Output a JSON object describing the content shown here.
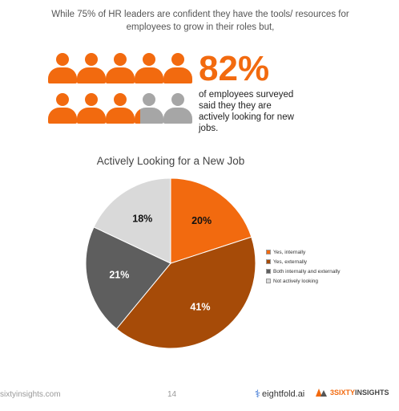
{
  "intro_text": "While 75% of HR leaders are confident they have the tools/ resources for employees to grow in their roles but,",
  "stat": {
    "number": "82%",
    "text": "of employees surveyed said they they are actively looking for new jobs."
  },
  "icon_colors": {
    "highlight": "#f26a0f",
    "muted": "#a6a6a6"
  },
  "icon_count": 10,
  "icon_highlight_fraction": 0.82,
  "chart_data": {
    "type": "pie",
    "title": "Actively Looking for a New Job",
    "slices": [
      {
        "label": "Yes, internally",
        "value": 20,
        "display": "20%",
        "color": "#f26a0f",
        "label_color": "#111111"
      },
      {
        "label": "Yes, externally",
        "value": 41,
        "display": "41%",
        "color": "#a64b08",
        "label_color": "#ffffff"
      },
      {
        "label": "Both internally and externally",
        "value": 21,
        "display": "21%",
        "color": "#5e5e5e",
        "label_color": "#ffffff"
      },
      {
        "label": "Not actively looking",
        "value": 18,
        "display": "18%",
        "color": "#d9d9d9",
        "label_color": "#111111"
      }
    ],
    "legend_position": "right"
  },
  "footer": {
    "url": "sixtyinsights.com",
    "page": "14",
    "brand1": "eightfold.ai",
    "brand2_prefix": "3SIXTY",
    "brand2_suffix": " INSIGHTS"
  }
}
